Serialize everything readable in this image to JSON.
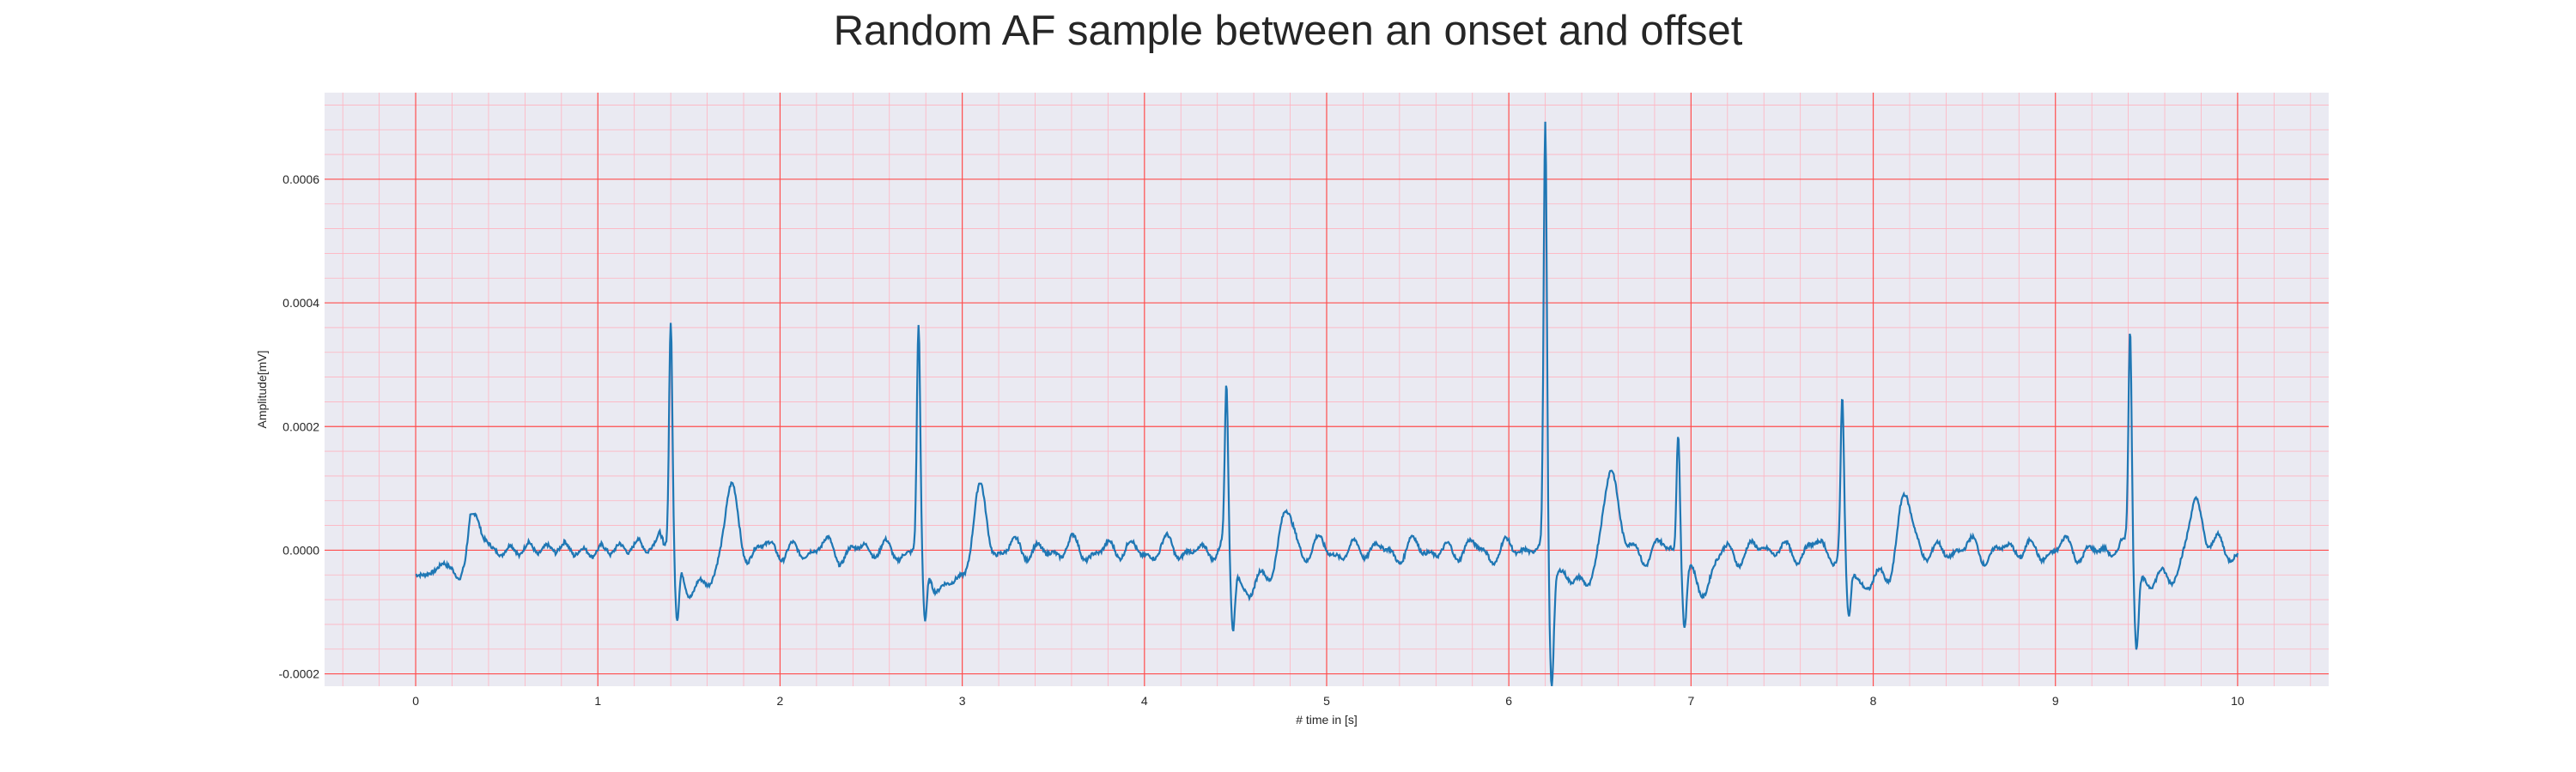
{
  "chart_data": {
    "type": "line",
    "title": "Random AF sample between an onset and offset",
    "xlabel": "# time in [s]",
    "ylabel": "Amplitude[mV]",
    "xlim": [
      -0.5,
      10.5
    ],
    "ylim": [
      -0.00022,
      0.00074
    ],
    "xticks": [
      0,
      1,
      2,
      3,
      4,
      5,
      6,
      7,
      8,
      9,
      10
    ],
    "yticks": [
      -0.0002,
      0.0,
      0.0002,
      0.0004,
      0.0006
    ],
    "ytick_labels": [
      "-0.0002",
      "0.0000",
      "0.0002",
      "0.0004",
      "0.0006"
    ],
    "grid": true,
    "grid_major_color": "#ff4d4d",
    "grid_minor_color": "#ffb3c0",
    "plot_background": "#eaeaf2",
    "line_color": "#1f77b4",
    "baseline": [
      [
        0.0,
        -4e-05
      ],
      [
        0.05,
        -4e-05
      ],
      [
        0.1,
        -3.5e-05
      ],
      [
        0.15,
        -2e-05
      ],
      [
        0.2,
        -3e-05
      ],
      [
        0.24,
        -5e-05
      ],
      [
        0.27,
        -2e-05
      ],
      [
        0.3,
        5.5e-05
      ],
      [
        0.33,
        6e-05
      ],
      [
        0.37,
        2e-05
      ],
      [
        0.42,
        5e-06
      ],
      [
        0.47,
        -1e-05
      ],
      [
        0.52,
        1e-05
      ],
      [
        0.57,
        -1e-05
      ],
      [
        0.62,
        1.5e-05
      ],
      [
        0.67,
        -8e-06
      ],
      [
        0.72,
        1e-05
      ],
      [
        0.77,
        -5e-06
      ],
      [
        0.82,
        1.5e-05
      ],
      [
        0.87,
        -1e-05
      ],
      [
        0.92,
        5e-06
      ],
      [
        0.97,
        -1.2e-05
      ],
      [
        1.02,
        1e-05
      ],
      [
        1.07,
        -8e-06
      ],
      [
        1.12,
        1.2e-05
      ],
      [
        1.17,
        -6e-06
      ],
      [
        1.22,
        2e-05
      ],
      [
        1.27,
        -5e-06
      ],
      [
        1.31,
        1.2e-05
      ],
      [
        1.34,
        3e-05
      ],
      [
        1.36,
        1.5e-05
      ]
    ],
    "beats": [
      {
        "t": 1.4,
        "r": 0.000365,
        "s": -0.00011
      },
      {
        "t": 2.76,
        "r": 0.000355,
        "s": -0.00011
      },
      {
        "t": 4.45,
        "r": 0.000255,
        "s": -0.00011
      },
      {
        "t": 6.2,
        "r": 0.0007,
        "s": -0.00018
      },
      {
        "t": 6.93,
        "r": 0.000205,
        "s": -0.0001
      },
      {
        "t": 7.83,
        "r": 0.000245,
        "s": -9.5e-05
      },
      {
        "t": 9.41,
        "r": 0.00036,
        "s": -0.000125
      }
    ],
    "t_waves": [
      {
        "t": 1.73,
        "a": 9.5e-05
      },
      {
        "t": 3.1,
        "a": 9e-05
      },
      {
        "t": 4.78,
        "a": 6.5e-05
      },
      {
        "t": 6.56,
        "a": 0.00014
      },
      {
        "t": 8.17,
        "a": 8.5e-05
      },
      {
        "t": 9.77,
        "a": 8.8e-05
      }
    ],
    "x_end": 10.0
  }
}
